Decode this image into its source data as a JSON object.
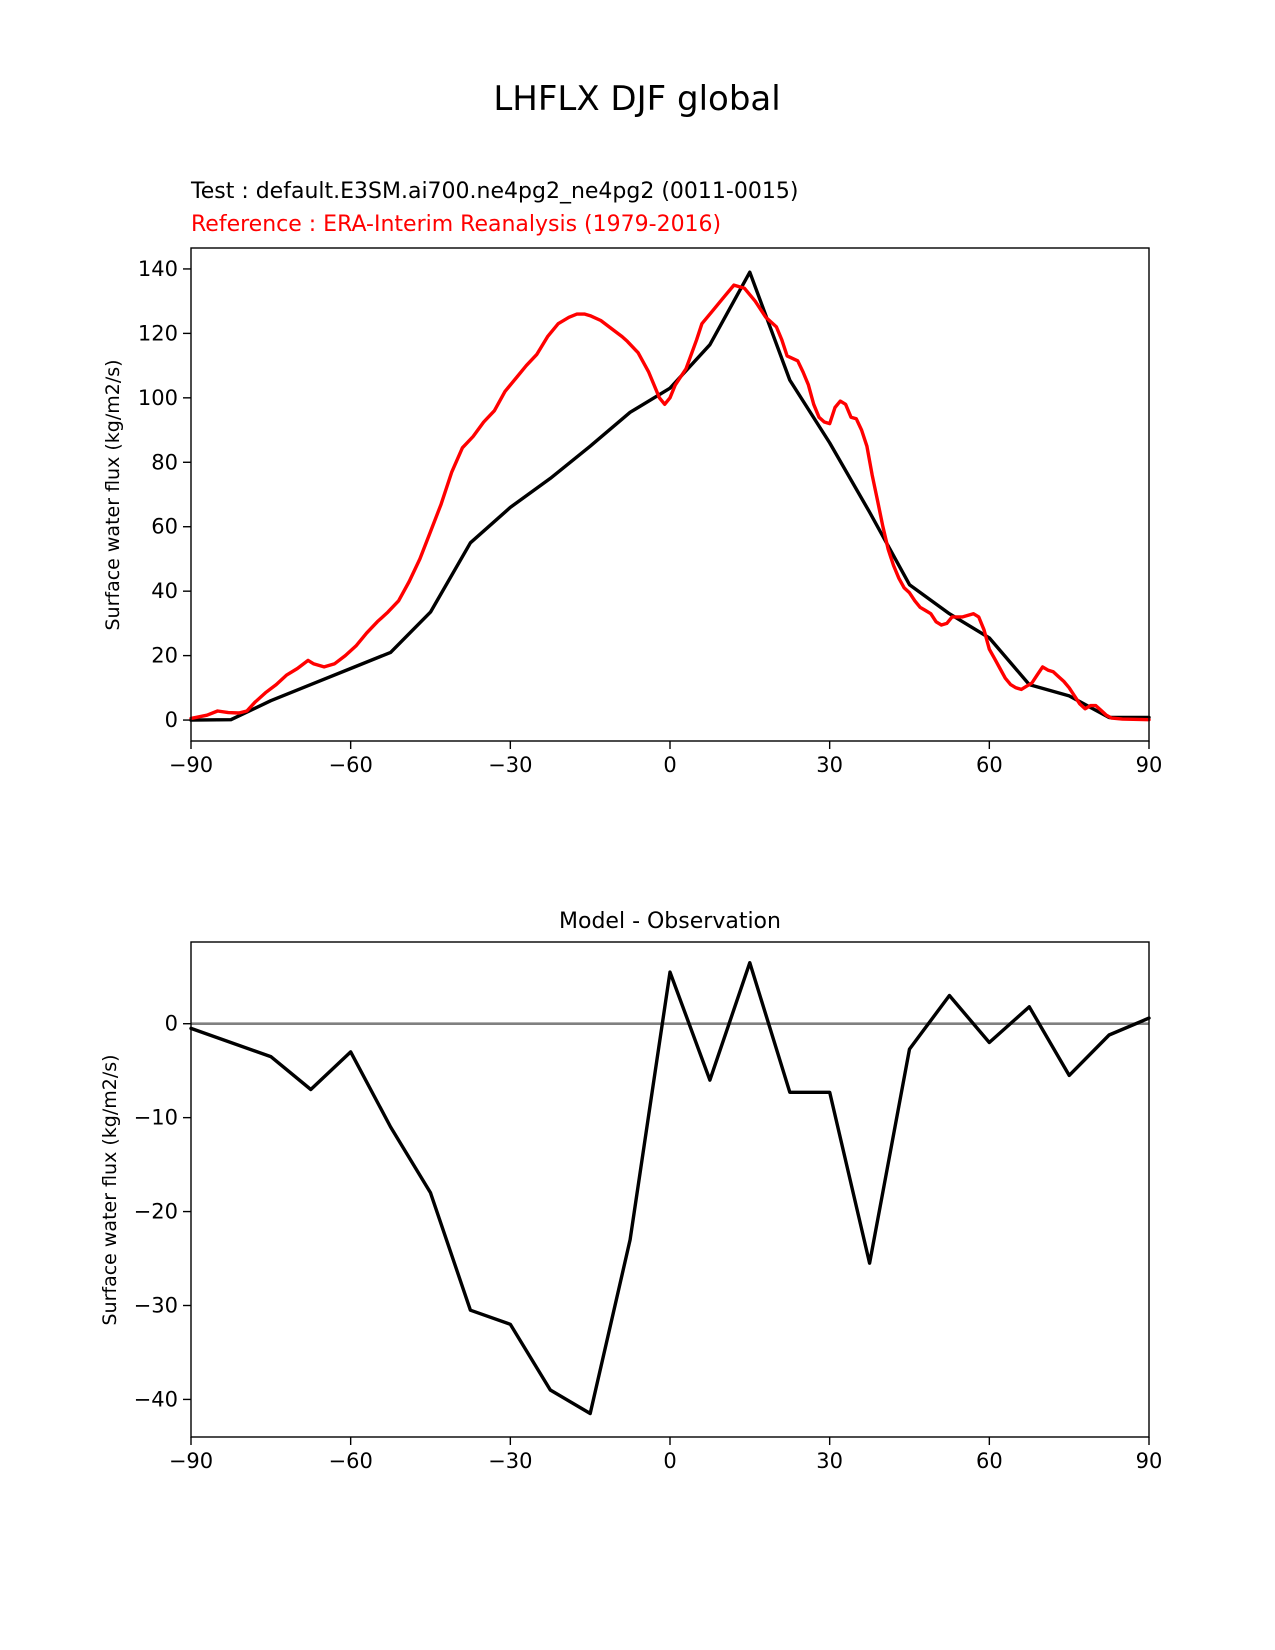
{
  "figure": {
    "suptitle": "LHFLX DJF global"
  },
  "chart_data": [
    {
      "type": "line",
      "test_label": "Test : default.E3SM.ai700.ne4pg2_ne4pg2 (0011-0015)",
      "reference_label": "Reference : ERA-Interim Reanalysis (1979-2016)",
      "ylabel": "Surface water flux (kg/m2/s)",
      "xlabel": "",
      "xlim": [
        -90,
        90
      ],
      "ylim": [
        -6.5,
        146.5
      ],
      "xticks": [
        -90,
        -60,
        -30,
        0,
        30,
        60,
        90
      ],
      "xtick_labels": [
        "−90",
        "−60",
        "−30",
        "0",
        "30",
        "60",
        "90"
      ],
      "yticks": [
        0,
        20,
        40,
        60,
        80,
        100,
        120,
        140
      ],
      "ytick_labels": [
        "0",
        "20",
        "40",
        "60",
        "80",
        "100",
        "120",
        "140"
      ],
      "colors": {
        "test": "#000000",
        "reference": "#ff0000"
      },
      "series": [
        {
          "name": "Test",
          "x": [
            -90,
            -82.5,
            -75,
            -67.5,
            -60,
            -52.5,
            -45,
            -37.5,
            -30,
            -22.5,
            -15,
            -7.5,
            0,
            7.5,
            15,
            22.5,
            30,
            37.5,
            45,
            52.5,
            60,
            67.5,
            75,
            82.5,
            90
          ],
          "values": [
            0,
            0.1,
            6,
            11,
            16,
            21,
            33.5,
            55,
            66,
            75,
            85,
            95.5,
            103,
            116.5,
            139,
            105.5,
            86,
            64.5,
            42,
            33,
            25.5,
            11,
            7.5,
            0.8,
            0.8
          ]
        },
        {
          "name": "Reference",
          "x": [
            -90,
            -87,
            -85,
            -83,
            -81,
            -79.5,
            -78,
            -76,
            -74,
            -72,
            -70,
            -68,
            -67,
            -65,
            -63,
            -61,
            -59,
            -57,
            -55,
            -53,
            -51,
            -49,
            -47,
            -45,
            -43,
            -41,
            -39,
            -37,
            -35,
            -33,
            -31,
            -29,
            -27,
            -25,
            -23,
            -21,
            -19,
            -17.5,
            -16,
            -15,
            -13,
            -11,
            -9,
            -8,
            -6,
            -4,
            -2,
            -1,
            0,
            1,
            3,
            5,
            6,
            8,
            10,
            12,
            14,
            16,
            18,
            20,
            21,
            22,
            24,
            25,
            26,
            27,
            28,
            29,
            30,
            31,
            32,
            33,
            34,
            35,
            36,
            37,
            38,
            39,
            40,
            41,
            42,
            43,
            44,
            45,
            46,
            47,
            48,
            49,
            50,
            51,
            52,
            53,
            55,
            57,
            58,
            59,
            60,
            61,
            62,
            63,
            64,
            65,
            66,
            67,
            68,
            69,
            70,
            71,
            72,
            73,
            74,
            75,
            76,
            77,
            78,
            79,
            80,
            81,
            82,
            83,
            85,
            88,
            90
          ],
          "values": [
            0.5,
            1.5,
            2.8,
            2.3,
            2.2,
            2.8,
            5.5,
            8.5,
            11,
            14,
            16,
            18.5,
            17.5,
            16.5,
            17.5,
            20,
            23,
            27,
            30.5,
            33.5,
            37,
            43,
            50,
            58.5,
            67,
            77,
            84.5,
            88,
            92.5,
            96,
            102,
            106,
            110,
            113.5,
            119,
            123,
            125,
            126,
            126,
            125.5,
            124,
            121.5,
            119,
            117.5,
            114,
            108,
            100,
            98,
            100,
            104,
            109,
            118,
            123,
            127,
            131,
            135,
            134,
            130,
            125,
            122,
            118,
            113,
            111.5,
            108,
            104,
            98,
            94,
            92.5,
            92,
            97,
            99,
            98,
            94,
            93.5,
            90,
            85,
            76,
            68,
            60,
            53,
            48,
            44,
            41,
            39.5,
            37,
            35,
            34,
            33,
            30.5,
            29.5,
            30,
            32,
            32,
            33,
            32,
            28,
            22,
            19,
            16,
            13,
            11,
            10,
            9.5,
            10.5,
            11.5,
            14,
            16.5,
            15.5,
            15,
            13.5,
            12,
            10,
            7.5,
            5,
            3.5,
            4.5,
            4.5,
            3,
            1.5,
            0.6,
            0.3,
            0.2,
            0.1
          ]
        }
      ]
    },
    {
      "type": "line",
      "title": "Model - Observation",
      "ylabel": "Surface water flux (kg/m2/s)",
      "xlabel": "",
      "xlim": [
        -90,
        90
      ],
      "ylim": [
        -44,
        8.7
      ],
      "xticks": [
        -90,
        -60,
        -30,
        0,
        30,
        60,
        90
      ],
      "xtick_labels": [
        "−90",
        "−60",
        "−30",
        "0",
        "30",
        "60",
        "90"
      ],
      "yticks": [
        -40,
        -30,
        -20,
        -10,
        0
      ],
      "ytick_labels": [
        "−40",
        "−30",
        "−20",
        "−10",
        "0"
      ],
      "zero_line": true,
      "colors": {
        "diff": "#000000",
        "zero": "#808080"
      },
      "series": [
        {
          "name": "Model - Observation",
          "x": [
            -90,
            -75,
            -67.5,
            -60,
            -52.5,
            -45,
            -37.5,
            -30,
            -22.5,
            -15,
            -7.5,
            0,
            7.5,
            15,
            22.5,
            30,
            37.5,
            45,
            52.5,
            60,
            67.5,
            75,
            82.5,
            90
          ],
          "values": [
            -0.5,
            -3.5,
            -7,
            -3,
            -11,
            -18,
            -30.5,
            -32,
            -39,
            -41.5,
            -23,
            5.5,
            -6,
            6.5,
            -7.3,
            -7.3,
            -25.5,
            -2.7,
            3,
            -2,
            1.8,
            -5.5,
            -1.2,
            0.6
          ]
        }
      ]
    }
  ]
}
